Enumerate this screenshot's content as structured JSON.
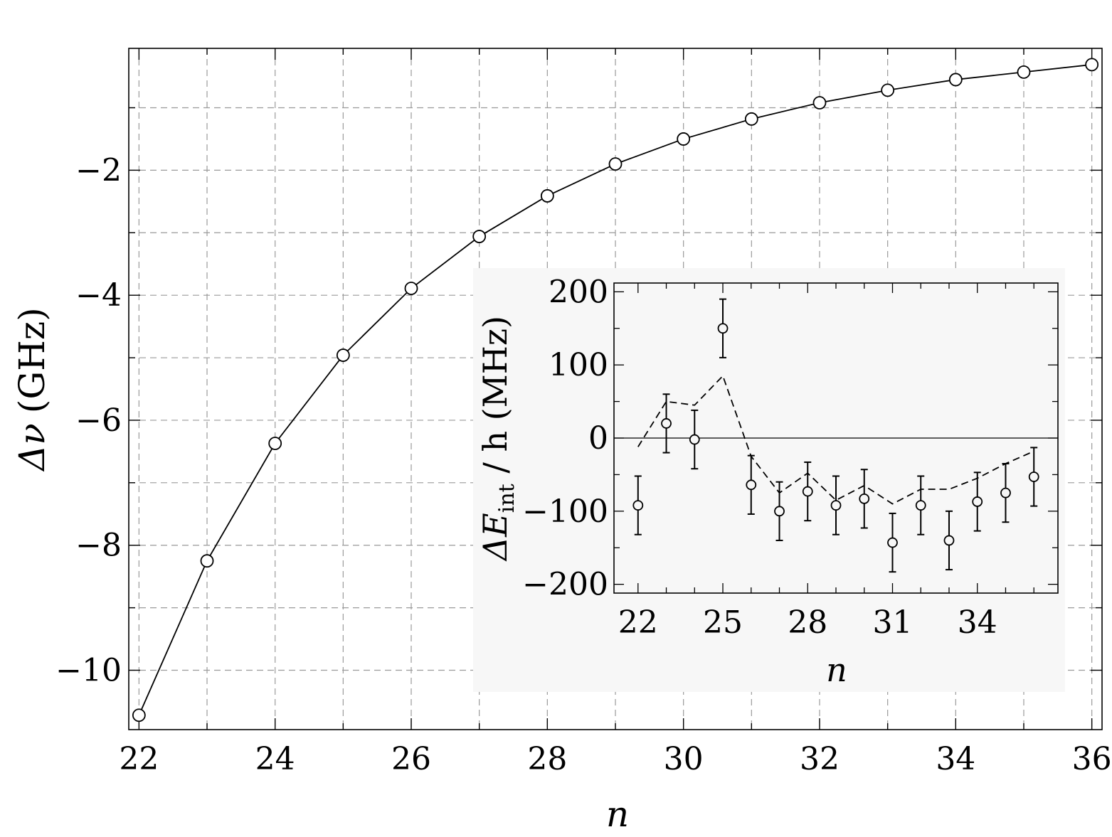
{
  "chart_data": [
    {
      "type": "line",
      "xlabel": "n",
      "ylabel_symbol": "Δν",
      "ylabel_unit": "(GHz)",
      "xlim": [
        21.85,
        36.15
      ],
      "ylim": [
        -10.95,
        -0.05
      ],
      "grid": true,
      "xticks": [
        22,
        24,
        26,
        28,
        30,
        32,
        34,
        36
      ],
      "yticks": [
        -10,
        -8,
        -6,
        -4,
        -2
      ],
      "x": [
        22,
        23,
        24,
        25,
        26,
        27,
        28,
        29,
        30,
        31,
        32,
        33,
        34,
        35,
        36
      ],
      "y": [
        -10.72,
        -8.25,
        -6.37,
        -4.96,
        -3.89,
        -3.06,
        -2.41,
        -1.9,
        -1.5,
        -1.18,
        -0.92,
        -0.72,
        -0.55,
        -0.43,
        -0.31
      ],
      "markers": "open-circle",
      "line": "solid"
    },
    {
      "type": "scatter",
      "inset": true,
      "xlabel": "n",
      "ylabel_symbol": "ΔE",
      "ylabel_subscript": "int",
      "ylabel_rest": " / h (MHz)",
      "xlim": [
        21.15,
        36.85
      ],
      "ylim": [
        -212,
        212
      ],
      "xticks": [
        22,
        25,
        28,
        31,
        34
      ],
      "yticks": [
        200,
        100,
        0,
        -100,
        -200
      ],
      "x": [
        22,
        23,
        24,
        25,
        26,
        27,
        28,
        29,
        30,
        31,
        32,
        33,
        34,
        35,
        36
      ],
      "y": [
        -92,
        20,
        -2,
        150,
        -64,
        -100,
        -73,
        -92,
        -83,
        -143,
        -92,
        -140,
        -87,
        -75,
        -53
      ],
      "error": [
        40,
        40,
        40,
        40,
        40,
        40,
        40,
        40,
        40,
        40,
        40,
        40,
        40,
        40,
        40
      ],
      "model_line": {
        "style": "dashed",
        "x": [
          22,
          23,
          24,
          25,
          26,
          27,
          28,
          29,
          30,
          31,
          32,
          33,
          34,
          35,
          36
        ],
        "y": [
          -12,
          50,
          45,
          85,
          -25,
          -75,
          -48,
          -85,
          -65,
          -90,
          -70,
          -70,
          -55,
          -35,
          -18
        ]
      },
      "zero_line": true
    }
  ]
}
